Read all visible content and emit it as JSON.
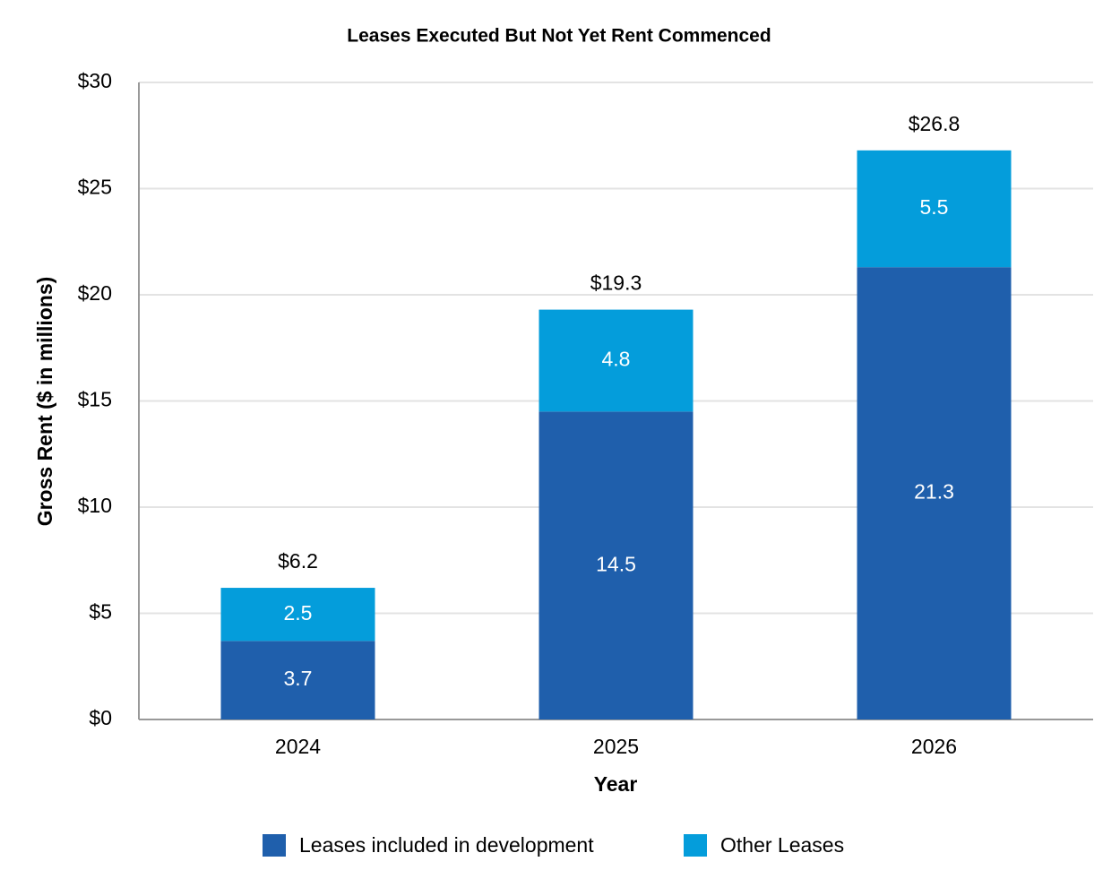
{
  "chart_data": {
    "type": "stacked_bar",
    "title": "Leases Executed But Not Yet Rent Commenced",
    "x_label": "Year",
    "y_label": "Gross Rent ($ in millions)",
    "categories": [
      "2024",
      "2025",
      "2026"
    ],
    "series": [
      {
        "name": "Leases included in development",
        "color": "#1f5fac",
        "values": [
          3.7,
          14.5,
          21.3
        ]
      },
      {
        "name": "Other Leases",
        "color": "#049ddb",
        "values": [
          2.5,
          4.8,
          5.5
        ]
      }
    ],
    "totals": {
      "values": [
        6.2,
        19.3,
        26.8
      ],
      "value_labels": [
        "$6.2",
        "$19.3",
        "$26.8"
      ]
    },
    "ylim": [
      0,
      30
    ],
    "yticks": [
      {
        "value": 0,
        "label": "$0"
      },
      {
        "value": 5,
        "label": "$5"
      },
      {
        "value": 10,
        "label": "$10"
      },
      {
        "value": 15,
        "label": "$15"
      },
      {
        "value": 20,
        "label": "$20"
      },
      {
        "value": 25,
        "label": "$25"
      },
      {
        "value": 30,
        "label": "$30"
      }
    ],
    "grid": true,
    "legend": "bottom"
  }
}
